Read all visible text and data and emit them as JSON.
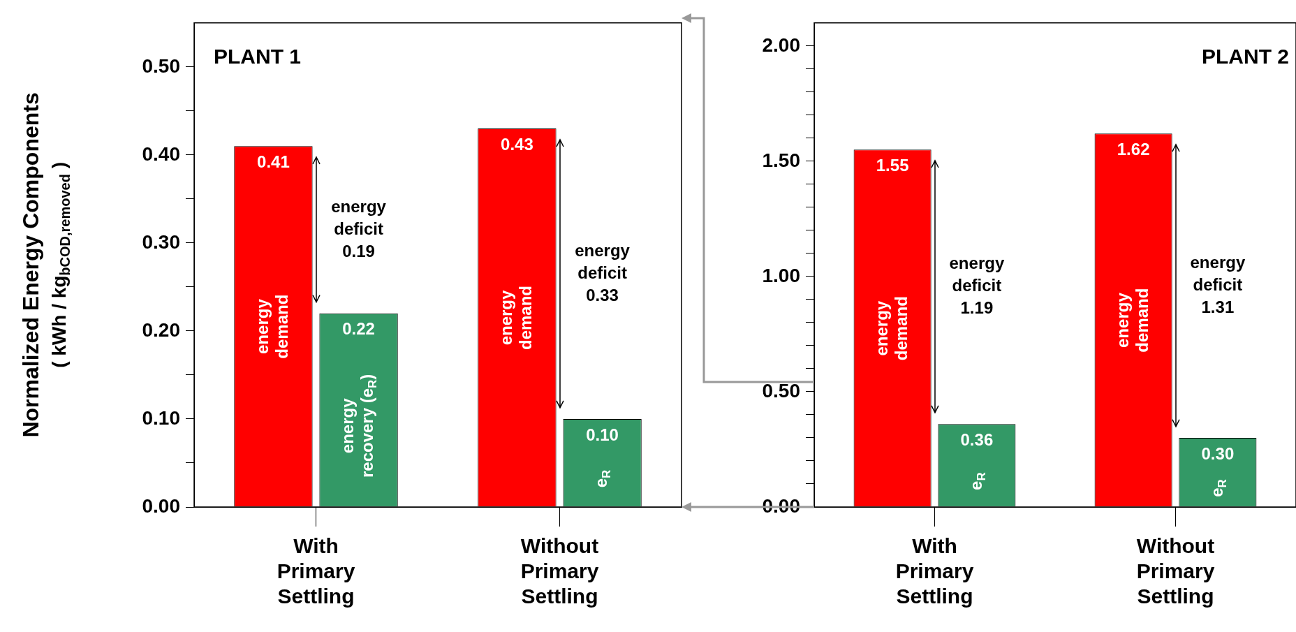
{
  "chart_data": [
    {
      "type": "bar",
      "title": "PLANT 1",
      "ylabel": "Normalized Energy Components\n( kWh / kg$_{bCOD,removed}$ )",
      "categories": [
        "With\nPrimary\nSettling",
        "Without\nPrimary\nSettling"
      ],
      "series": [
        {
          "name": "energy demand",
          "color": "#ff0000",
          "values": [
            0.41,
            0.43
          ],
          "value_labels": [
            "0.41",
            "0.43"
          ]
        },
        {
          "color": "#339966",
          "values": [
            0.22,
            0.1
          ],
          "value_labels": [
            "0.22",
            "0.10"
          ]
        }
      ],
      "ylim": [
        0,
        0.55
      ],
      "yticks": [
        {
          "value": 0,
          "label": "0.00"
        },
        {
          "value": 0.05,
          "label": null
        },
        {
          "value": 0.1,
          "label": "0.10"
        },
        {
          "value": 0.15,
          "label": null
        },
        {
          "value": 0.2,
          "label": "0.20"
        },
        {
          "value": 0.25,
          "label": null
        },
        {
          "value": 0.3,
          "label": "0.30"
        },
        {
          "value": 0.35,
          "label": null
        },
        {
          "value": 0.4,
          "label": "0.40"
        },
        {
          "value": 0.45,
          "label": null
        },
        {
          "value": 0.5,
          "label": "0.50"
        }
      ],
      "grid": false,
      "annotations": [
        "energy deficit 0.19",
        "energy recovery (e$_{R}$)",
        "energy deficit 0.33",
        "e$_{R}$"
      ]
    },
    {
      "type": "bar",
      "title": "PLANT 2",
      "categories": [
        "With\nPrimary\nSettling",
        "Without\nPrimary\nSettling"
      ],
      "series": [
        {
          "name": "energy demand",
          "color": "#ff0000",
          "values": [
            1.55,
            1.62
          ],
          "value_labels": [
            "1.55",
            "1.62"
          ]
        },
        {
          "color": "#339966",
          "values": [
            0.36,
            0.3
          ],
          "value_labels": [
            "0.36",
            "0.30"
          ]
        }
      ],
      "ylim": [
        0,
        2.1
      ],
      "yticks": [
        {
          "value": 0,
          "label": "0.00"
        },
        {
          "value": 0.1,
          "label": null
        },
        {
          "value": 0.2,
          "label": null
        },
        {
          "value": 0.3,
          "label": null
        },
        {
          "value": 0.4,
          "label": null
        },
        {
          "value": 0.5,
          "label": "0.50"
        },
        {
          "value": 0.6,
          "label": null
        },
        {
          "value": 0.7,
          "label": null
        },
        {
          "value": 0.8,
          "label": null
        },
        {
          "value": 0.9,
          "label": null
        },
        {
          "value": 1.0,
          "label": "1.00"
        },
        {
          "value": 1.1,
          "label": null
        },
        {
          "value": 1.2,
          "label": null
        },
        {
          "value": 1.3,
          "label": null
        },
        {
          "value": 1.4,
          "label": null
        },
        {
          "value": 1.5,
          "label": "1.50"
        },
        {
          "value": 1.6,
          "label": null
        },
        {
          "value": 1.7,
          "label": null
        },
        {
          "value": 1.8,
          "label": null
        },
        {
          "value": 1.9,
          "label": null
        },
        {
          "value": 2.0,
          "label": "2.00"
        }
      ],
      "grid": false,
      "annotations": [
        "energy deficit 1.19",
        "e$_{R}$",
        "energy deficit 1.31",
        "e$_{R}$"
      ]
    }
  ]
}
